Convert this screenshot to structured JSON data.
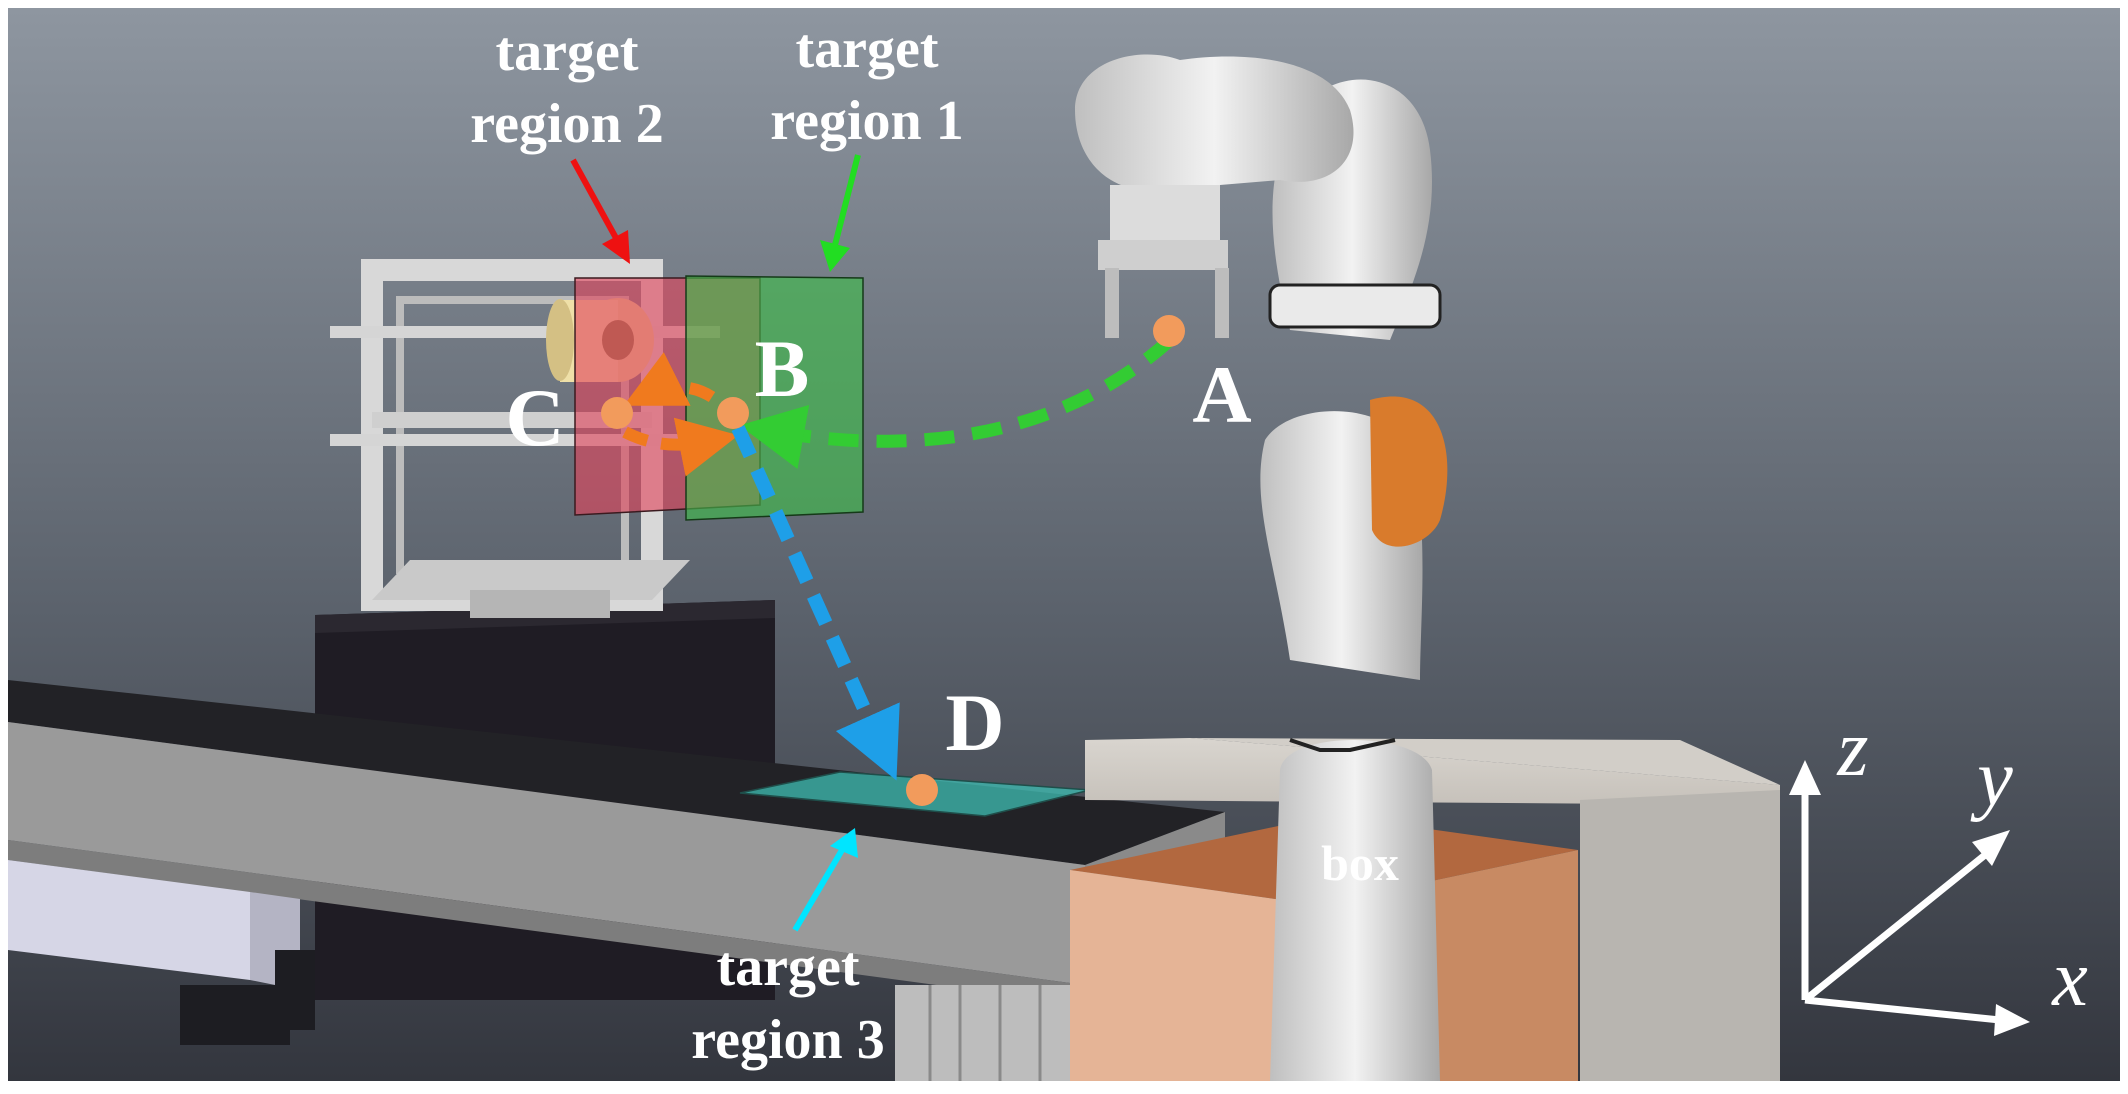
{
  "labels": {
    "region1_line1": "target",
    "region1_line2": "region 1",
    "region2_line1": "target",
    "region2_line2": "region 2",
    "region3_line1": "target",
    "region3_line2": "region 3",
    "point_a": "A",
    "point_b": "B",
    "point_c": "C",
    "point_d": "D",
    "box": "box"
  },
  "axes": {
    "x": "x",
    "y": "y",
    "z": "z"
  },
  "colors": {
    "background_top": "#8c949e",
    "background_bottom": "#3b3f49",
    "region1": "#3fbf4a",
    "region2": "#e0455c",
    "region3": "#3fbfb4",
    "path_ab": "#33cc33",
    "path_bc": "#f07a1e",
    "path_bd": "#1e9fe8",
    "point": "#f29b5c",
    "arrow_region1": "#22dd22",
    "arrow_region2": "#ee1111",
    "arrow_region3": "#00e5ff",
    "box_front": "#e5b496",
    "box_side": "#c88a63",
    "box_inside": "#b2683f"
  }
}
